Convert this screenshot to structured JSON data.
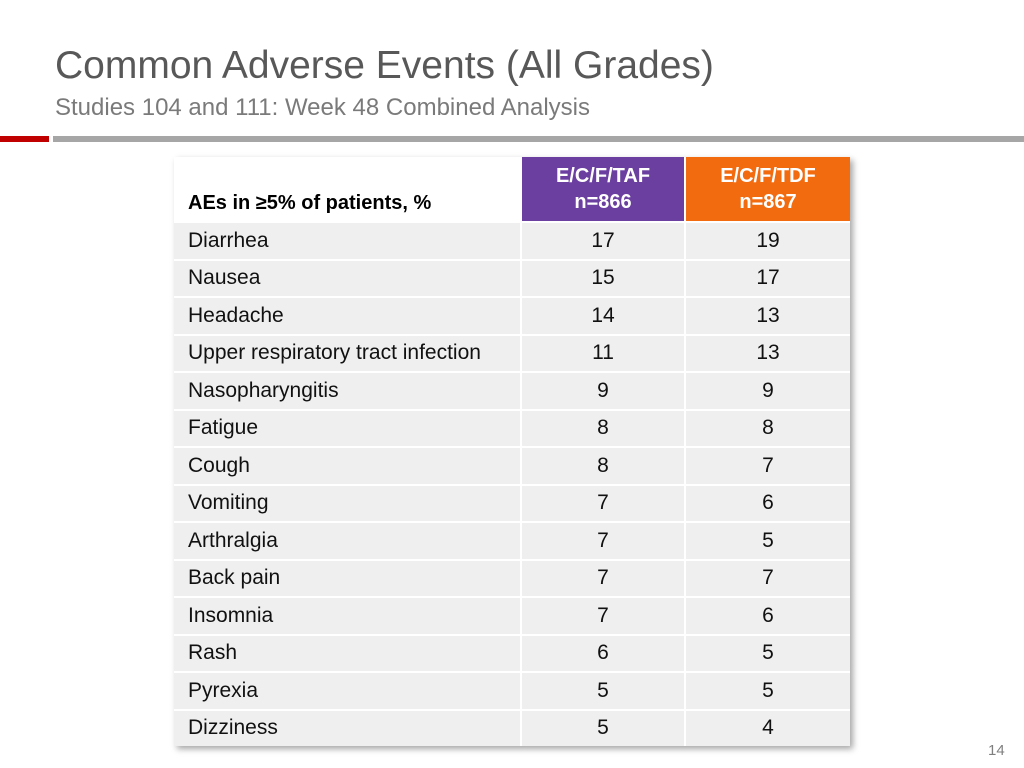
{
  "slide": {
    "title": "Common Adverse Events (All Grades)",
    "subtitle": "Studies 104 and 111: Week 48 Combined Analysis",
    "page_number": "14",
    "colors": {
      "accent_red": "#c00000",
      "divider_gray": "#a6a6a6",
      "taf_purple": "#6b3fa0",
      "tdf_orange": "#f26b0f",
      "row_bg": "#efefef"
    }
  },
  "table": {
    "row_header": "AEs in ≥5% of patients, %",
    "columns": [
      {
        "name": "E/C/F/TAF",
        "n": "n=866"
      },
      {
        "name": "E/C/F/TDF",
        "n": "n=867"
      }
    ],
    "rows": [
      {
        "ae": "Diarrhea",
        "taf": "17",
        "tdf": "19"
      },
      {
        "ae": "Nausea",
        "taf": "15",
        "tdf": "17"
      },
      {
        "ae": "Headache",
        "taf": "14",
        "tdf": "13"
      },
      {
        "ae": "Upper respiratory tract infection",
        "taf": "11",
        "tdf": "13"
      },
      {
        "ae": "Nasopharyngitis",
        "taf": "9",
        "tdf": "9"
      },
      {
        "ae": "Fatigue",
        "taf": "8",
        "tdf": "8"
      },
      {
        "ae": "Cough",
        "taf": "8",
        "tdf": "7"
      },
      {
        "ae": "Vomiting",
        "taf": "7",
        "tdf": "6"
      },
      {
        "ae": "Arthralgia",
        "taf": "7",
        "tdf": "5"
      },
      {
        "ae": "Back pain",
        "taf": "7",
        "tdf": "7"
      },
      {
        "ae": "Insomnia",
        "taf": "7",
        "tdf": "6"
      },
      {
        "ae": "Rash",
        "taf": "6",
        "tdf": "5"
      },
      {
        "ae": "Pyrexia",
        "taf": "5",
        "tdf": "5"
      },
      {
        "ae": "Dizziness",
        "taf": "5",
        "tdf": "4"
      }
    ]
  }
}
